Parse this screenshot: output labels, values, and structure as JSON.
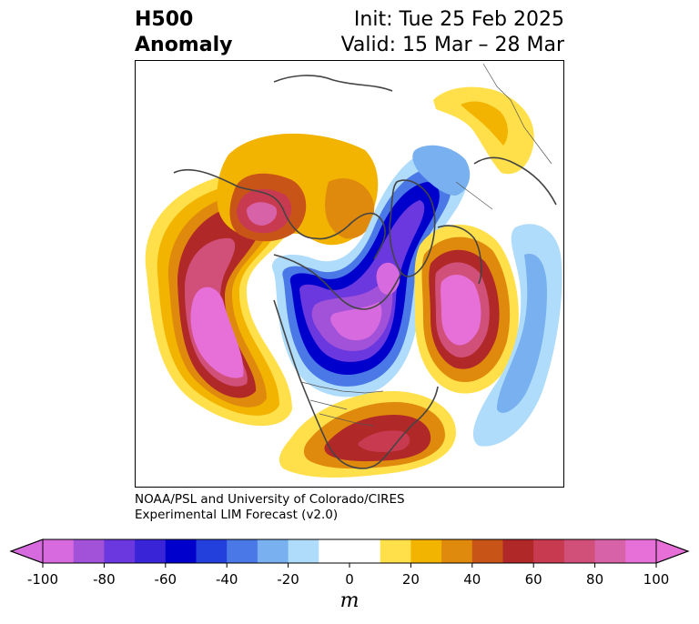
{
  "title": {
    "field": "H500",
    "field_type": "Anomaly",
    "init": "Init: Tue 25 Feb 2025",
    "valid": "Valid: 15 Mar – 28 Mar"
  },
  "credit": {
    "line1": "NOAA/PSL and University of Colorado/CIRES",
    "line2": "Experimental LIM Forecast (v2.0)"
  },
  "colorbar": {
    "units": "m",
    "min": -100,
    "max": 100,
    "extend": "both",
    "ticks": [
      "-100",
      "-80",
      "-60",
      "-40",
      "-20",
      "0",
      "20",
      "40",
      "60",
      "80",
      "100"
    ],
    "colors": [
      "#d86ae0",
      "#a152d8",
      "#6a38de",
      "#3a24d8",
      "#0000cc",
      "#2440dc",
      "#4a78e6",
      "#78b0f0",
      "#aedcfa",
      "#ffffff",
      "#ffffff",
      "#ffe04a",
      "#f2b400",
      "#df8a0c",
      "#c85418",
      "#b02828",
      "#c83a50",
      "#d0507a",
      "#d862a8",
      "#e670d8"
    ]
  },
  "map": {
    "projection": "north-polar stereographic",
    "features": [
      {
        "name": "alaska-bering-positive-anomaly",
        "sign": "positive",
        "peak_m": 100
      },
      {
        "name": "north-pacific-positive-anomaly",
        "sign": "positive",
        "peak_m": 100
      },
      {
        "name": "canada-greenland-negative-anomaly",
        "sign": "negative",
        "peak_m": -100
      },
      {
        "name": "north-atlantic-positive-anomaly",
        "sign": "positive",
        "peak_m": 100
      },
      {
        "name": "eastern-us-positive-anomaly",
        "sign": "positive",
        "peak_m": 60
      },
      {
        "name": "siberia-positive-anomaly",
        "sign": "positive",
        "peak_m": 30
      },
      {
        "name": "eurasia-negative-anomaly",
        "sign": "negative",
        "peak_m": -30
      }
    ]
  }
}
